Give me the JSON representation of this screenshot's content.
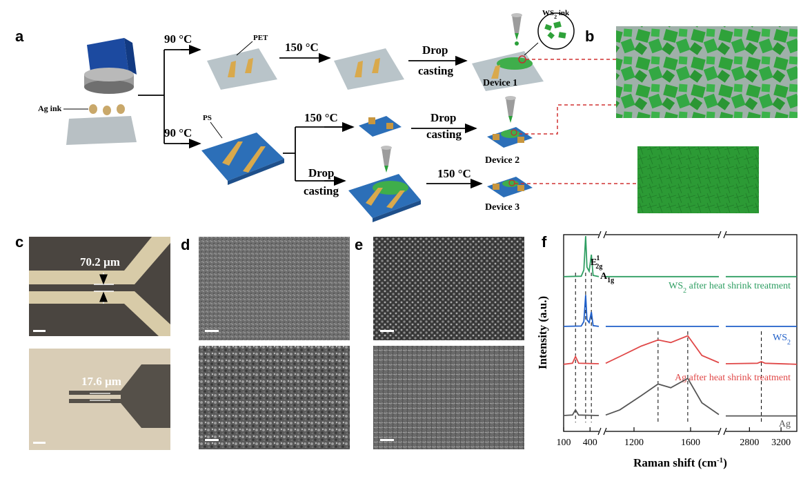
{
  "panels": {
    "a": "a",
    "b": "b",
    "c": "c",
    "d": "d",
    "e": "e",
    "f": "f"
  },
  "schematic": {
    "ag_ink": "Ag ink",
    "temp_90_top": "90 °C",
    "temp_90_bottom": "90 °C",
    "pet": "PET",
    "ps": "PS",
    "temp_150_top": "150 °C",
    "temp_150_mid": "150 °C",
    "temp_150_bottom": "150 °C",
    "drop_top_1": "Drop",
    "drop_top_2": "casting",
    "drop_mid_1": "Drop",
    "drop_mid_2": "casting",
    "drop_bot_1": "Drop",
    "drop_bot_2": "casting",
    "ws2_ink_ws": "WS",
    "ws2_ink_sub": "2",
    "ws2_ink_rest": " ink",
    "device1": "Device 1",
    "device2": "Device 2",
    "device3": "Device 3"
  },
  "panel_c": {
    "gap_top": "70.2 µm",
    "gap_bottom": "17.6 µm"
  },
  "colors": {
    "ws2_green": "#2e9e62",
    "ws2_blue": "#1f5fc9",
    "ag_red": "#e04848",
    "ag_gray": "#555555",
    "electrode_gold": "#d9a94c",
    "substrate_blue": "#2c6fb8",
    "flake_green": "#2fa23a"
  },
  "chart_data": {
    "type": "line",
    "xlabel_main": "Raman shift (cm",
    "xlabel_sup": "-1",
    "xlabel_end": ")",
    "ylabel": "Intensity (a.u.)",
    "x_segments": [
      [
        100,
        500
      ],
      [
        1000,
        1800
      ],
      [
        2500,
        3400
      ]
    ],
    "xticks": [
      100,
      400,
      1200,
      1600,
      2800,
      3200
    ],
    "xtick_labels": [
      "100",
      "400",
      "1200",
      "1600",
      "2800",
      "3200"
    ],
    "peak_labels": {
      "e2g_main": "E",
      "e2g_sub": "2g",
      "e2g_sup": "1",
      "a1g_main": "A",
      "a1g_sub": "1g"
    },
    "series": [
      {
        "name_main": "WS",
        "name_sub": "2",
        "name_rest": " after heat shrink treatment",
        "key": "ws2_heat",
        "points": [
          [
            100,
            0.02
          ],
          [
            300,
            0.03
          ],
          [
            330,
            0.18
          ],
          [
            350,
            1.0
          ],
          [
            365,
            0.25
          ],
          [
            390,
            0.15
          ],
          [
            415,
            0.55
          ],
          [
            435,
            0.05
          ],
          [
            500,
            0.02
          ],
          [
            1000,
            0.02
          ],
          [
            1800,
            0.02
          ],
          [
            2500,
            0.02
          ],
          [
            3400,
            0.02
          ]
        ]
      },
      {
        "name_main": "WS",
        "name_sub": "2",
        "name_rest": "",
        "key": "ws2",
        "points": [
          [
            100,
            0.02
          ],
          [
            300,
            0.03
          ],
          [
            330,
            0.15
          ],
          [
            350,
            0.85
          ],
          [
            365,
            0.2
          ],
          [
            390,
            0.12
          ],
          [
            415,
            0.4
          ],
          [
            435,
            0.04
          ],
          [
            500,
            0.02
          ],
          [
            1000,
            0.02
          ],
          [
            1800,
            0.02
          ],
          [
            2500,
            0.02
          ],
          [
            3400,
            0.02
          ]
        ]
      },
      {
        "name_main": "Ag after heat shrink treatment",
        "name_sub": "",
        "name_rest": "",
        "key": "ag_heat",
        "points": [
          [
            100,
            0.03
          ],
          [
            200,
            0.05
          ],
          [
            235,
            0.18
          ],
          [
            270,
            0.05
          ],
          [
            500,
            0.04
          ],
          [
            1000,
            0.05
          ],
          [
            1100,
            0.18
          ],
          [
            1250,
            0.38
          ],
          [
            1370,
            0.5
          ],
          [
            1460,
            0.45
          ],
          [
            1580,
            0.58
          ],
          [
            1680,
            0.2
          ],
          [
            1800,
            0.06
          ],
          [
            2500,
            0.04
          ],
          [
            2900,
            0.05
          ],
          [
            2950,
            0.08
          ],
          [
            3000,
            0.05
          ],
          [
            3400,
            0.03
          ]
        ]
      },
      {
        "name_main": "Ag",
        "name_sub": "",
        "name_rest": "",
        "key": "ag",
        "points": [
          [
            100,
            0.03
          ],
          [
            200,
            0.04
          ],
          [
            235,
            0.15
          ],
          [
            270,
            0.04
          ],
          [
            500,
            0.03
          ],
          [
            1000,
            0.04
          ],
          [
            1100,
            0.15
          ],
          [
            1250,
            0.45
          ],
          [
            1370,
            0.7
          ],
          [
            1460,
            0.62
          ],
          [
            1580,
            0.82
          ],
          [
            1680,
            0.3
          ],
          [
            1800,
            0.05
          ],
          [
            2500,
            0.02
          ],
          [
            3400,
            0.02
          ]
        ]
      }
    ],
    "dashed_lines": [
      235,
      350,
      415,
      1370,
      1580,
      2950
    ]
  }
}
